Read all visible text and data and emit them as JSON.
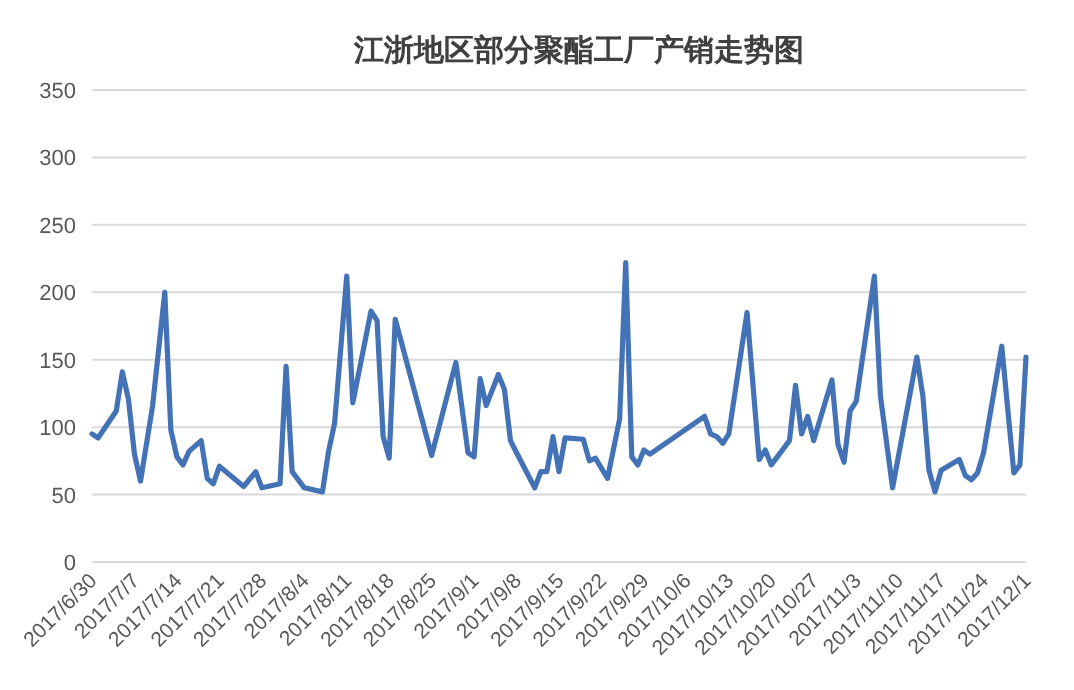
{
  "chart_data": {
    "type": "line",
    "title": "江浙地区部分聚酯工厂产销走势图",
    "x": [
      "2017-06-30",
      "2017-07-01",
      "2017-07-04",
      "2017-07-05",
      "2017-07-06",
      "2017-07-07",
      "2017-07-08",
      "2017-07-10",
      "2017-07-12",
      "2017-07-13",
      "2017-07-14",
      "2017-07-15",
      "2017-07-16",
      "2017-07-18",
      "2017-07-19",
      "2017-07-20",
      "2017-07-21",
      "2017-07-25",
      "2017-07-27",
      "2017-07-28",
      "2017-07-31",
      "2017-08-01",
      "2017-08-02",
      "2017-08-04",
      "2017-08-07",
      "2017-08-08",
      "2017-08-09",
      "2017-08-11",
      "2017-08-12",
      "2017-08-15",
      "2017-08-16",
      "2017-08-17",
      "2017-08-18",
      "2017-08-19",
      "2017-08-25",
      "2017-08-29",
      "2017-08-31",
      "2017-09-01",
      "2017-09-02",
      "2017-09-03",
      "2017-09-05",
      "2017-09-06",
      "2017-09-07",
      "2017-09-08",
      "2017-09-11",
      "2017-09-12",
      "2017-09-13",
      "2017-09-14",
      "2017-09-15",
      "2017-09-16",
      "2017-09-19",
      "2017-09-20",
      "2017-09-21",
      "2017-09-23",
      "2017-09-25",
      "2017-09-26",
      "2017-09-27",
      "2017-09-28",
      "2017-09-29",
      "2017-09-30",
      "2017-10-09",
      "2017-10-10",
      "2017-10-11",
      "2017-10-12",
      "2017-10-13",
      "2017-10-16",
      "2017-10-18",
      "2017-10-19",
      "2017-10-20",
      "2017-10-23",
      "2017-10-24",
      "2017-10-25",
      "2017-10-26",
      "2017-10-27",
      "2017-10-30",
      "2017-10-31",
      "2017-11-01",
      "2017-11-02",
      "2017-11-03",
      "2017-11-06",
      "2017-11-07",
      "2017-11-09",
      "2017-11-13",
      "2017-11-14",
      "2017-11-15",
      "2017-11-16",
      "2017-11-17",
      "2017-11-20",
      "2017-11-21",
      "2017-11-22",
      "2017-11-23",
      "2017-11-24",
      "2017-11-27",
      "2017-11-29",
      "2017-11-30",
      "2017-12-01"
    ],
    "series": [
      {
        "color": "#4372b6",
        "values": [
          95,
          92,
          112,
          141,
          121,
          80,
          60,
          116,
          200,
          98,
          78,
          72,
          82,
          90,
          62,
          58,
          71,
          56,
          67,
          55,
          58,
          145,
          67,
          55,
          52,
          82,
          103,
          212,
          118,
          186,
          179,
          93,
          77,
          180,
          79,
          148,
          81,
          78,
          136,
          116,
          139,
          128,
          90,
          81,
          55,
          67,
          67,
          93,
          67,
          92,
          91,
          75,
          77,
          62,
          106,
          222,
          78,
          72,
          83,
          80,
          108,
          95,
          93,
          88,
          95,
          185,
          76,
          83,
          72,
          90,
          131,
          95,
          108,
          90,
          135,
          87,
          74,
          112,
          119,
          212,
          123,
          55,
          152,
          123,
          68,
          52,
          68,
          76,
          64,
          61,
          66,
          81,
          160,
          66,
          72,
          152
        ]
      }
    ],
    "xlim": [
      "2017-06-30",
      "2017-12-01"
    ],
    "xticks": [
      {
        "value": "2017-06-30",
        "label": "2017/6/30"
      },
      {
        "value": "2017-07-07",
        "label": "2017/7/7"
      },
      {
        "value": "2017-07-14",
        "label": "2017/7/14"
      },
      {
        "value": "2017-07-21",
        "label": "2017/7/21"
      },
      {
        "value": "2017-07-28",
        "label": "2017/7/28"
      },
      {
        "value": "2017-08-04",
        "label": "2017/8/4"
      },
      {
        "value": "2017-08-11",
        "label": "2017/8/11"
      },
      {
        "value": "2017-08-18",
        "label": "2017/8/18"
      },
      {
        "value": "2017-08-25",
        "label": "2017/8/25"
      },
      {
        "value": "2017-09-01",
        "label": "2017/9/1"
      },
      {
        "value": "2017-09-08",
        "label": "2017/9/8"
      },
      {
        "value": "2017-09-15",
        "label": "2017/9/15"
      },
      {
        "value": "2017-09-22",
        "label": "2017/9/22"
      },
      {
        "value": "2017-09-29",
        "label": "2017/9/29"
      },
      {
        "value": "2017-10-06",
        "label": "2017/10/6"
      },
      {
        "value": "2017-10-13",
        "label": "2017/10/13"
      },
      {
        "value": "2017-10-20",
        "label": "2017/10/20"
      },
      {
        "value": "2017-10-27",
        "label": "2017/10/27"
      },
      {
        "value": "2017-11-03",
        "label": "2017/11/3"
      },
      {
        "value": "2017-11-10",
        "label": "2017/11/10"
      },
      {
        "value": "2017-11-17",
        "label": "2017/11/17"
      },
      {
        "value": "2017-11-24",
        "label": "2017/11/24"
      },
      {
        "value": "2017-12-01",
        "label": "2017/12/1"
      }
    ],
    "ylim": [
      0,
      350
    ],
    "yticks": [
      0,
      50,
      100,
      150,
      200,
      250,
      300,
      350
    ],
    "grid": "y"
  }
}
